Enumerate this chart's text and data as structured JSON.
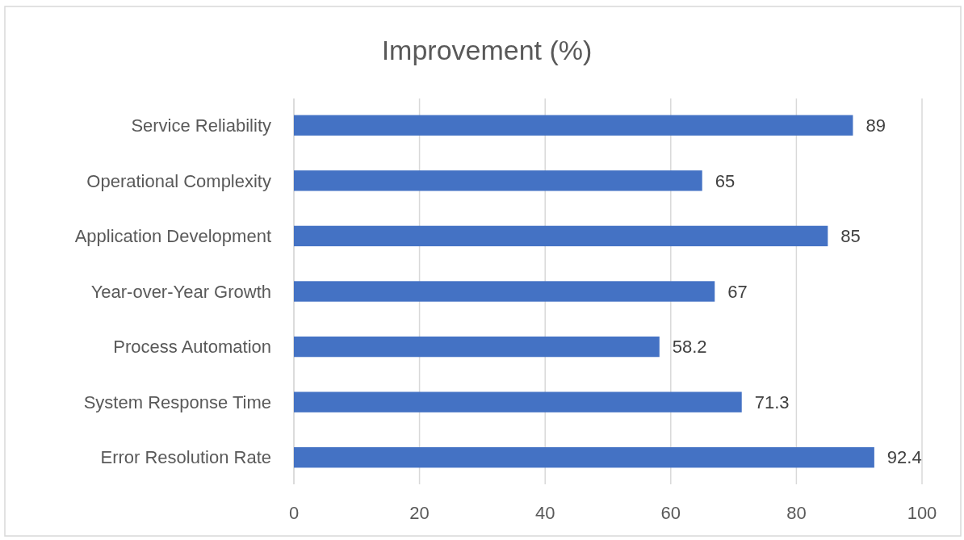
{
  "chart_data": {
    "type": "bar",
    "orientation": "horizontal",
    "title": "Improvement (%)",
    "categories": [
      "Service Reliability",
      "Operational Complexity",
      "Application Development",
      "Year-over-Year Growth",
      "Process Automation",
      "System Response Time",
      "Error Resolution Rate"
    ],
    "values": [
      89,
      65,
      85,
      67,
      58.2,
      71.3,
      92.4
    ],
    "color": "#4472c4",
    "xlim": [
      0,
      100
    ],
    "xticks": [
      0,
      20,
      40,
      60,
      80,
      100
    ],
    "grid": "x",
    "data_labels": true
  }
}
